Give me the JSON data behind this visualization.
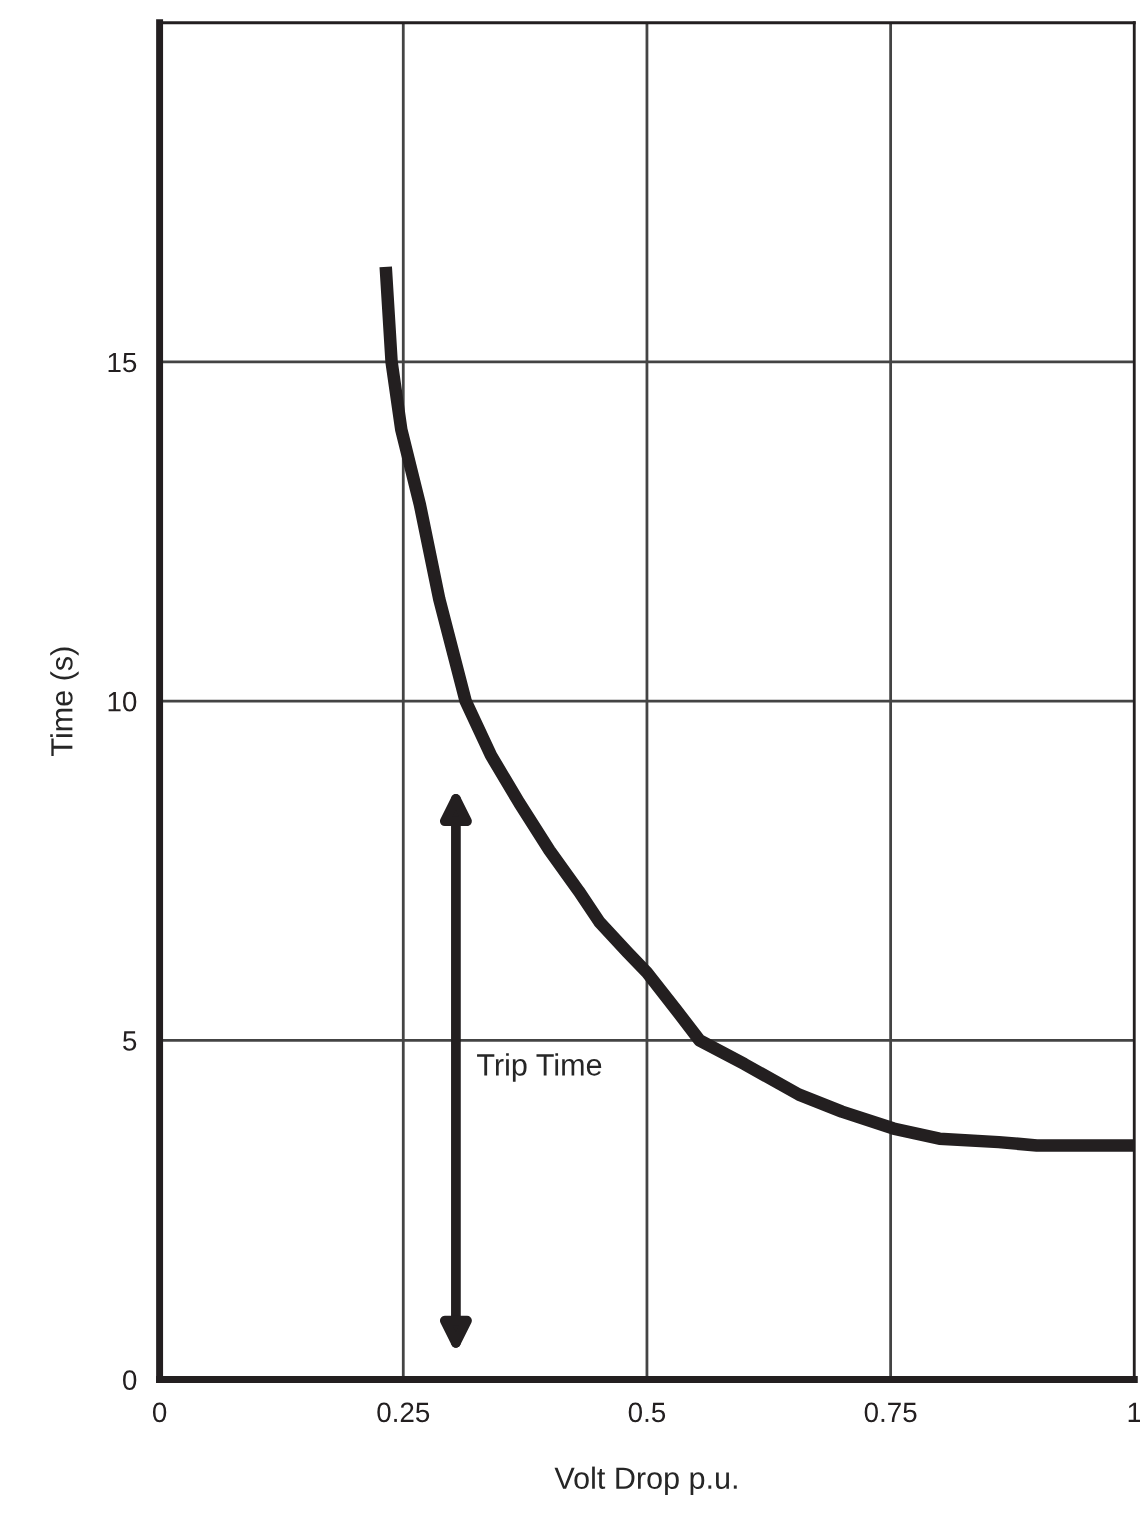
{
  "chart_data": {
    "type": "line",
    "xlabel": "Volt Drop p.u.",
    "ylabel": "Time (s)",
    "series": [
      {
        "color": "#231f20",
        "x": [
          0.232,
          0.238,
          0.248,
          0.267,
          0.287,
          0.314,
          0.34,
          0.369,
          0.4,
          0.43,
          0.451,
          0.48,
          0.5,
          0.53,
          0.554,
          0.6,
          0.656,
          0.7,
          0.753,
          0.8,
          0.861,
          0.9,
          1.0
        ],
        "values": [
          16.4,
          15.0,
          14.0,
          12.9,
          11.5,
          10.0,
          9.2,
          8.5,
          7.8,
          7.2,
          6.75,
          6.3,
          6.0,
          5.45,
          5.0,
          4.65,
          4.2,
          3.95,
          3.7,
          3.55,
          3.5,
          3.45,
          3.45
        ]
      }
    ],
    "xlim": [
      0,
      1
    ],
    "xticks": [
      0,
      0.25,
      0.5,
      0.75,
      1
    ],
    "ylim": [
      0,
      20
    ],
    "yticks": [
      0,
      5,
      10,
      15
    ],
    "grid": true,
    "legend": false,
    "marker": "none",
    "line_style": "solid",
    "annotations": [
      "Trip Time"
    ]
  }
}
